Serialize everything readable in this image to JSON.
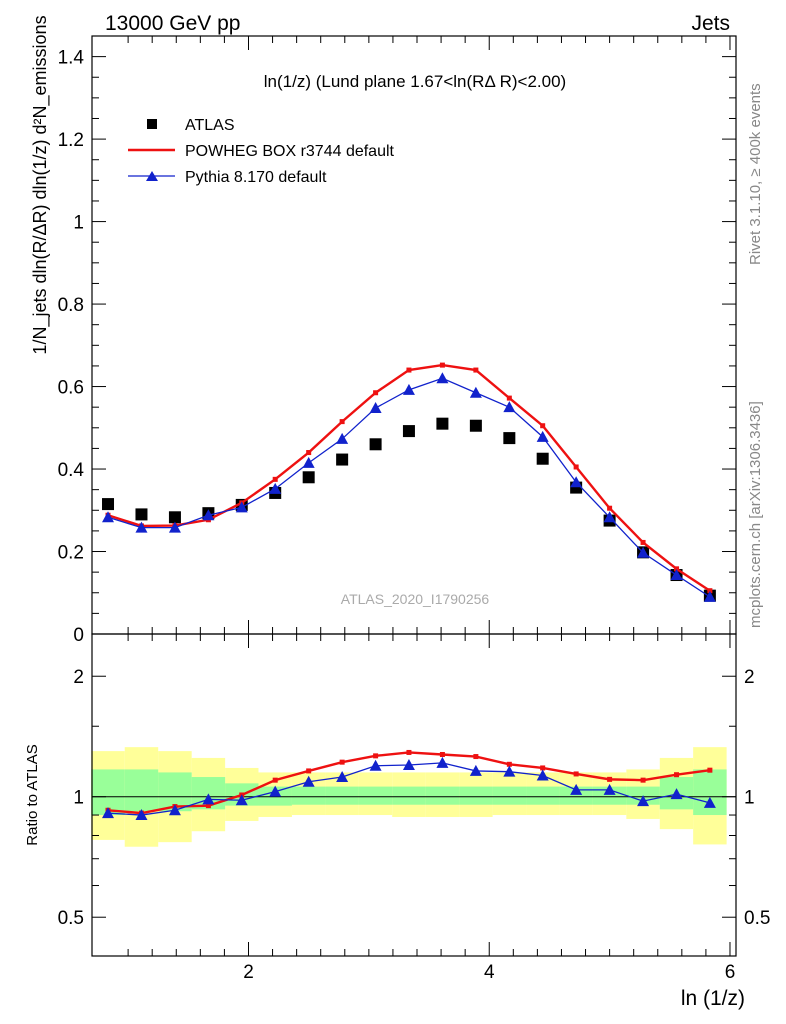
{
  "header": {
    "left": "13000 GeV pp",
    "right": "Jets"
  },
  "side_labels": {
    "rivet": "Rivet 3.1.10, ≥ 400k events",
    "mcplots": "mcplots.cern.ch [arXiv:1306.3436]"
  },
  "main_plot": {
    "title": "ln(1/z) (Lund plane 1.67<ln(RΔ R)<2.00)",
    "ylabel": "1/N_jets dln(R/ΔR) dln(1/z) d²N_emissions",
    "watermark": "ATLAS_2020_I1790256",
    "y_ticks": [
      "0",
      "0.2",
      "0.4",
      "0.6",
      "0.8",
      "1",
      "1.2",
      "1.4"
    ]
  },
  "ratio_plot": {
    "ylabel": "Ratio to ATLAS",
    "y_ticks": [
      "0.5",
      "1",
      "2"
    ],
    "y_ticks_right": [
      "0.5",
      "1",
      "2"
    ]
  },
  "x_axis": {
    "label": "ln (1/z)",
    "ticks": [
      "2",
      "4",
      "6"
    ]
  },
  "legend": [
    {
      "label": "ATLAS",
      "color": "#000000",
      "marker": "square"
    },
    {
      "label": "POWHEG BOX r3744 default",
      "color": "#ee1111",
      "marker": "line"
    },
    {
      "label": "Pythia 8.170 default",
      "color": "#1122cc",
      "marker": "triangle"
    }
  ],
  "chart_data": [
    {
      "type": "scatter",
      "title": "ln(1/z) (Lund plane 1.67<ln(RΔ R)<2.00)",
      "xlabel": "ln (1/z)",
      "ylabel": "1/N_jets dln(R/ΔR) dln(1/z) d²N_emissions",
      "xlim": [
        0.7,
        6.05
      ],
      "ylim": [
        0,
        1.45
      ],
      "x": [
        0.833,
        1.111,
        1.389,
        1.667,
        1.944,
        2.222,
        2.5,
        2.778,
        3.056,
        3.333,
        3.611,
        3.889,
        4.167,
        4.444,
        4.722,
        5.0,
        5.278,
        5.556,
        5.833
      ],
      "series": [
        {
          "name": "ATLAS",
          "color": "#000000",
          "values": [
            0.315,
            0.29,
            0.283,
            0.293,
            0.313,
            0.342,
            0.38,
            0.423,
            0.46,
            0.492,
            0.51,
            0.505,
            0.475,
            0.425,
            0.355,
            0.275,
            0.198,
            0.143,
            0.093
          ]
        },
        {
          "name": "POWHEG BOX r3744 default",
          "color": "#ee1111",
          "values": [
            0.288,
            0.262,
            0.263,
            0.277,
            0.318,
            0.375,
            0.44,
            0.515,
            0.585,
            0.64,
            0.652,
            0.64,
            0.572,
            0.505,
            0.405,
            0.305,
            0.222,
            0.158,
            0.105
          ]
        },
        {
          "name": "Pythia 8.170 default",
          "color": "#1122cc",
          "values": [
            0.283,
            0.258,
            0.258,
            0.288,
            0.307,
            0.352,
            0.415,
            0.473,
            0.548,
            0.592,
            0.62,
            0.585,
            0.55,
            0.478,
            0.368,
            0.283,
            0.197,
            0.143,
            0.09
          ]
        }
      ]
    },
    {
      "type": "line",
      "ylabel": "Ratio to ATLAS",
      "xlabel": "ln (1/z)",
      "xlim": [
        0.7,
        6.05
      ],
      "ylim": [
        0.4,
        2.55
      ],
      "log_y": true,
      "x": [
        0.833,
        1.111,
        1.389,
        1.667,
        1.944,
        2.222,
        2.5,
        2.778,
        3.056,
        3.333,
        3.611,
        3.889,
        4.167,
        4.444,
        4.722,
        5.0,
        5.278,
        5.556,
        5.833
      ],
      "bin_edges": [
        0.694,
        0.972,
        1.25,
        1.528,
        1.806,
        2.083,
        2.361,
        2.639,
        2.917,
        3.194,
        3.472,
        3.75,
        4.028,
        4.306,
        4.583,
        4.861,
        5.139,
        5.417,
        5.694,
        5.972
      ],
      "bands": {
        "green": {
          "color": "#99ff99",
          "low": [
            0.9,
            0.92,
            0.92,
            0.93,
            0.95,
            0.95,
            0.955,
            0.955,
            0.955,
            0.955,
            0.955,
            0.955,
            0.955,
            0.955,
            0.955,
            0.955,
            0.955,
            0.93,
            0.9
          ],
          "high": [
            1.17,
            1.17,
            1.15,
            1.12,
            1.08,
            1.06,
            1.06,
            1.06,
            1.06,
            1.06,
            1.06,
            1.06,
            1.06,
            1.06,
            1.06,
            1.06,
            1.06,
            1.12,
            1.17
          ]
        },
        "yellow": {
          "color": "#ffff99",
          "low": [
            0.78,
            0.75,
            0.77,
            0.82,
            0.87,
            0.89,
            0.9,
            0.9,
            0.9,
            0.89,
            0.89,
            0.89,
            0.9,
            0.9,
            0.9,
            0.9,
            0.88,
            0.83,
            0.76
          ],
          "high": [
            1.3,
            1.33,
            1.3,
            1.25,
            1.18,
            1.15,
            1.15,
            1.15,
            1.15,
            1.15,
            1.15,
            1.15,
            1.15,
            1.15,
            1.15,
            1.15,
            1.17,
            1.25,
            1.33
          ]
        }
      },
      "series": [
        {
          "name": "POWHEG BOX r3744 default",
          "color": "#ee1111",
          "values": [
            0.925,
            0.91,
            0.945,
            0.95,
            1.01,
            1.1,
            1.16,
            1.22,
            1.265,
            1.29,
            1.275,
            1.26,
            1.205,
            1.18,
            1.14,
            1.105,
            1.1,
            1.135,
            1.165
          ]
        },
        {
          "name": "Pythia 8.170 default",
          "color": "#1122cc",
          "values": [
            0.91,
            0.9,
            0.925,
            0.985,
            0.98,
            1.03,
            1.09,
            1.12,
            1.195,
            1.2,
            1.215,
            1.16,
            1.155,
            1.13,
            1.04,
            1.04,
            0.975,
            1.015,
            0.965
          ]
        }
      ]
    }
  ]
}
